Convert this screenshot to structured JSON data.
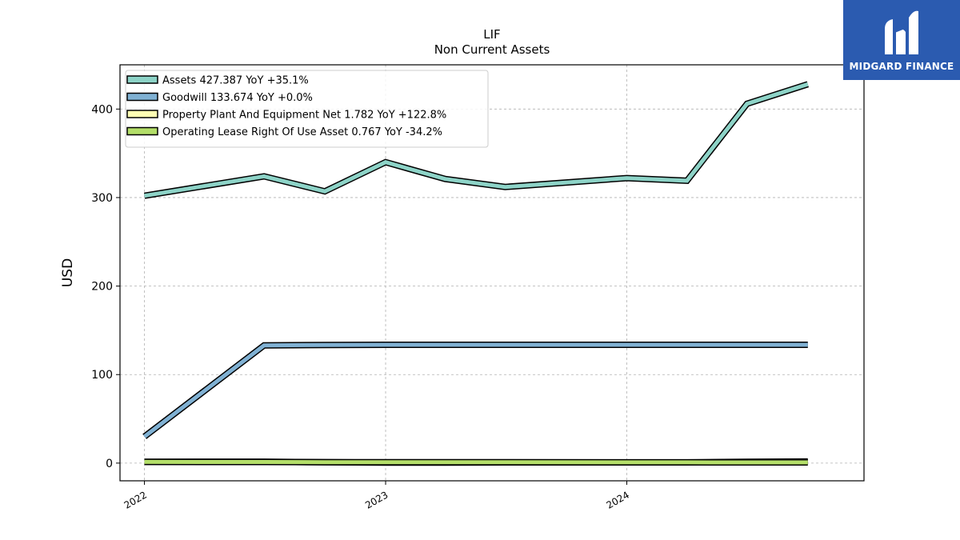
{
  "chart_data": {
    "type": "line",
    "title": "LIF",
    "subtitle": "Non Current  Assets",
    "ylabel": "USD",
    "xlabel": "",
    "x": [
      "2022-01-01",
      "2022-07-01",
      "2022-10-01",
      "2023-01-01",
      "2023-04-01",
      "2023-07-01",
      "2024-01-01",
      "2024-04-01",
      "2024-07-01",
      "2024-10-01"
    ],
    "xlim": [
      "2021-11-25",
      "2024-12-25"
    ],
    "ylim": [
      -20,
      450
    ],
    "yticks": [
      0,
      100,
      200,
      300,
      400
    ],
    "xticks": [
      {
        "date": "2022-01-01",
        "label": "2022"
      },
      {
        "date": "2023-01-01",
        "label": "2023"
      },
      {
        "date": "2024-01-01",
        "label": "2024"
      }
    ],
    "grid": true,
    "legend_position": "top-left",
    "series": [
      {
        "name": "Assets  427.387 YoY +35.1%",
        "color": "#8dd3c7",
        "values": [
          302,
          324,
          307,
          340,
          321,
          312,
          322,
          319,
          406,
          428
        ]
      },
      {
        "name": "Goodwill  133.674 YoY +0.0%",
        "color": "#80b1d3",
        "values": [
          30,
          133,
          133.5,
          133.674,
          133.674,
          133.674,
          133.674,
          133.674,
          133.674,
          133.674
        ]
      },
      {
        "name": "Property Plant And Equipment Net  1.782 YoY +122.8%",
        "color": "#ffffb3",
        "values": [
          1.5,
          1.6,
          1.0,
          0.5,
          0.6,
          0.8,
          0.8,
          0.8,
          1.5,
          1.782
        ]
      },
      {
        "name": "Operating Lease Right Of Use Asset  0.767 YoY -34.2%",
        "color": "#b3de69",
        "values": [
          1.3,
          1.2,
          1.1,
          1.0,
          1.0,
          1.0,
          0.9,
          0.9,
          0.8,
          0.767
        ]
      }
    ]
  },
  "logo": {
    "text": "MIDGARD FINANCE",
    "icon": "midgard-logo-icon"
  }
}
